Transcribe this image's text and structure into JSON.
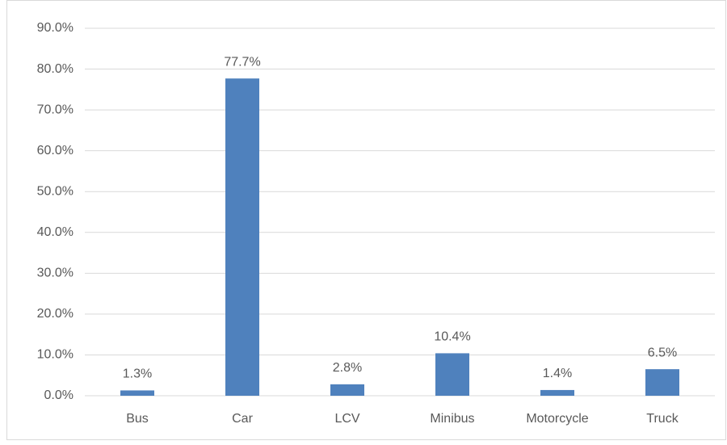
{
  "chart_data": {
    "type": "bar",
    "categories": [
      "Bus",
      "Car",
      "LCV",
      "Minibus",
      "Motorcycle",
      "Truck"
    ],
    "values": [
      1.3,
      77.7,
      2.8,
      10.4,
      1.4,
      6.5
    ],
    "value_labels": [
      "1.3%",
      "77.7%",
      "2.8%",
      "10.4%",
      "1.4%",
      "6.5%"
    ],
    "color": "#4f81bd",
    "ylim": [
      0,
      90
    ],
    "yticks": [
      {
        "value": 0,
        "label": "0.0%"
      },
      {
        "value": 10,
        "label": "10.0%"
      },
      {
        "value": 20,
        "label": "20.0%"
      },
      {
        "value": 30,
        "label": "30.0%"
      },
      {
        "value": 40,
        "label": "40.0%"
      },
      {
        "value": 50,
        "label": "50.0%"
      },
      {
        "value": 60,
        "label": "60.0%"
      },
      {
        "value": 70,
        "label": "70.0%"
      },
      {
        "value": 80,
        "label": "80.0%"
      },
      {
        "value": 90,
        "label": "90.0%"
      }
    ],
    "grid": true
  }
}
